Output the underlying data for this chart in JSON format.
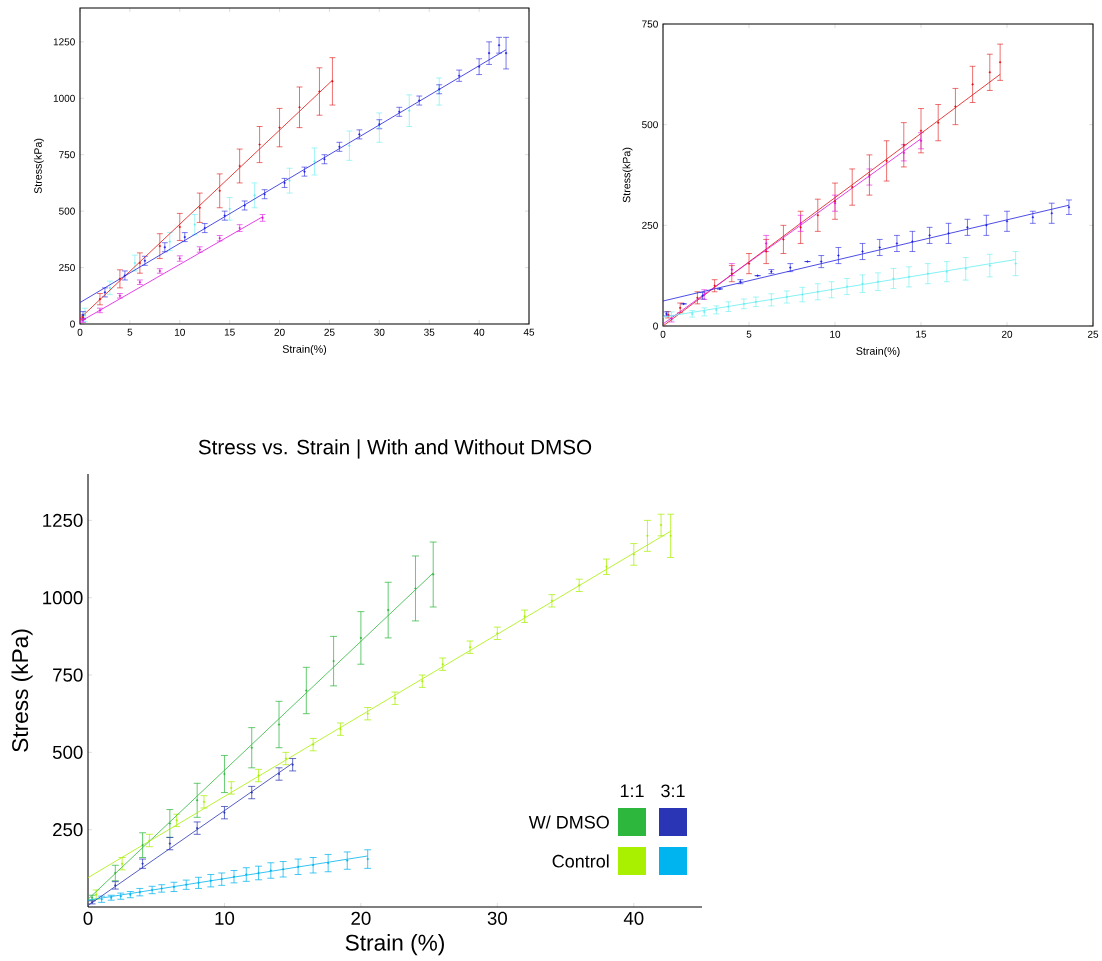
{
  "chart_data": [
    {
      "type": "scatter",
      "xlabel": "Strain(%)",
      "ylabel": "Stress(kPa)",
      "xlim": [
        0,
        45
      ],
      "ylim": [
        0,
        1400
      ],
      "xticks": [
        0,
        5,
        10,
        15,
        20,
        25,
        30,
        35,
        40,
        45
      ],
      "yticks": [
        0,
        250,
        500,
        750,
        1000,
        1250
      ],
      "marker": "circle",
      "series": [
        {
          "color": "#66eef0",
          "x": [
            0.5,
            3,
            5.5,
            9,
            11.5,
            15,
            17.5,
            21,
            23.5,
            27,
            30,
            33,
            36
          ],
          "values": [
            40,
            160,
            270,
            365,
            440,
            510,
            570,
            635,
            720,
            790,
            870,
            945,
            1030
          ],
          "errors": [
            30,
            30,
            35,
            40,
            45,
            50,
            55,
            55,
            60,
            65,
            65,
            70,
            60
          ]
        },
        {
          "color": "#e01010",
          "x": [
            0.3,
            2,
            4,
            6,
            8,
            10,
            12,
            14,
            16,
            18,
            20,
            22,
            24,
            25.3
          ],
          "values": [
            30,
            110,
            200,
            270,
            345,
            430,
            515,
            590,
            700,
            795,
            870,
            960,
            1030,
            1075
          ],
          "errors": [
            10,
            25,
            40,
            45,
            55,
            60,
            65,
            75,
            75,
            80,
            85,
            90,
            105,
            105
          ]
        },
        {
          "color": "#2020e0",
          "x": [
            0.3,
            2.5,
            4.5,
            6.5,
            8.5,
            10.5,
            12.5,
            14.5,
            16.5,
            18.5,
            20.5,
            22.5,
            24.5,
            26,
            28,
            30,
            32,
            34,
            36,
            38,
            40,
            41,
            42,
            42.7
          ],
          "values": [
            40,
            140,
            215,
            280,
            340,
            385,
            425,
            480,
            525,
            575,
            625,
            675,
            730,
            785,
            840,
            885,
            940,
            990,
            1040,
            1100,
            1140,
            1200,
            1235,
            1200
          ],
          "errors": [
            15,
            20,
            20,
            20,
            20,
            20,
            20,
            20,
            20,
            20,
            20,
            20,
            20,
            20,
            20,
            20,
            20,
            20,
            20,
            25,
            35,
            50,
            35,
            70
          ]
        },
        {
          "color": "#e010e0",
          "x": [
            0.3,
            2,
            4,
            6,
            8,
            10,
            12,
            14,
            16,
            18.3
          ],
          "values": [
            15,
            60,
            125,
            185,
            235,
            290,
            330,
            380,
            425,
            470
          ],
          "errors": [
            8,
            10,
            10,
            10,
            10,
            12,
            12,
            12,
            15,
            15
          ]
        },
        {
          "type": "line",
          "marker": "none",
          "color": "#e01010",
          "x": [
            0,
            25.3
          ],
          "values": [
            25,
            1080
          ]
        },
        {
          "type": "line",
          "marker": "none",
          "color": "#2020e0",
          "x": [
            0,
            42.7
          ],
          "values": [
            95,
            1215
          ]
        },
        {
          "type": "line",
          "marker": "none",
          "color": "#e010e0",
          "x": [
            0,
            18.3
          ],
          "values": [
            10,
            475
          ]
        }
      ]
    },
    {
      "type": "scatter",
      "xlabel": "Strain(%)",
      "ylabel": "Stress(kPa)",
      "xlim": [
        0,
        25
      ],
      "ylim": [
        0,
        750
      ],
      "xticks": [
        0,
        5,
        10,
        15,
        20,
        25
      ],
      "yticks": [
        0,
        250,
        500,
        750
      ],
      "marker": "circle",
      "series": [
        {
          "color": "#e01010",
          "x": [
            0.3,
            1,
            2,
            3,
            4,
            5,
            6,
            7,
            8,
            9,
            10,
            11,
            12,
            13,
            14,
            15,
            16,
            17,
            18,
            19,
            19.6
          ],
          "values": [
            28,
            45,
            70,
            100,
            130,
            155,
            185,
            215,
            245,
            275,
            310,
            345,
            375,
            410,
            450,
            485,
            505,
            545,
            600,
            630,
            655
          ],
          "errors": [
            8,
            12,
            15,
            15,
            20,
            25,
            30,
            35,
            40,
            40,
            45,
            45,
            50,
            50,
            55,
            55,
            45,
            45,
            45,
            45,
            45
          ]
        },
        {
          "color": "#e010e0",
          "x": [
            0.5,
            2.4,
            4,
            6,
            8,
            10,
            12,
            14,
            15
          ],
          "values": [
            18,
            78,
            140,
            205,
            255,
            305,
            370,
            430,
            460
          ],
          "errors": [
            8,
            12,
            15,
            20,
            20,
            20,
            20,
            20,
            20
          ]
        },
        {
          "color": "#2020e0",
          "x": [
            0.2,
            1.2,
            2.3,
            3.3,
            4.5,
            5.5,
            6.3,
            7.4,
            8.4,
            9.2,
            10.2,
            11.6,
            12.6,
            13.6,
            14.5,
            15.5,
            16.6,
            17.7,
            18.8,
            20,
            21.5,
            22.6,
            23.6
          ],
          "values": [
            30,
            55,
            75,
            92,
            110,
            125,
            135,
            145,
            160,
            160,
            175,
            185,
            195,
            205,
            210,
            225,
            230,
            245,
            250,
            260,
            270,
            280,
            295
          ],
          "errors": [
            5,
            null,
            8,
            null,
            5,
            null,
            5,
            10,
            null,
            15,
            20,
            20,
            20,
            20,
            25,
            20,
            25,
            20,
            25,
            25,
            15,
            25,
            18
          ]
        },
        {
          "color": "#66eef0",
          "x": [
            0.5,
            1.7,
            2.4,
            3.1,
            3.8,
            4.7,
            5.4,
            6.3,
            7.2,
            8.1,
            9,
            9.8,
            10.7,
            11.6,
            12.5,
            13.4,
            14.3,
            15.4,
            16.5,
            17.6,
            19,
            20.5
          ],
          "values": [
            25,
            30,
            35,
            40,
            48,
            55,
            60,
            65,
            72,
            78,
            85,
            90,
            98,
            105,
            110,
            118,
            122,
            130,
            135,
            142,
            150,
            155
          ],
          "errors": [
            10,
            8,
            10,
            10,
            12,
            12,
            12,
            15,
            15,
            18,
            20,
            20,
            20,
            22,
            22,
            25,
            25,
            25,
            25,
            28,
            28,
            30
          ]
        },
        {
          "type": "line",
          "marker": "none",
          "color": "#e01010",
          "x": [
            0,
            19.6
          ],
          "values": [
            0,
            625
          ]
        },
        {
          "type": "line",
          "marker": "none",
          "color": "#e010e0",
          "x": [
            0,
            15
          ],
          "values": [
            5,
            465
          ]
        },
        {
          "type": "line",
          "marker": "none",
          "color": "#2020e0",
          "x": [
            0,
            23.6
          ],
          "values": [
            62,
            300
          ]
        },
        {
          "type": "line",
          "marker": "none",
          "color": "#66eef0",
          "x": [
            0,
            20.5
          ],
          "values": [
            22,
            165
          ]
        }
      ]
    },
    {
      "type": "scatter",
      "title": "Stress vs. Strain | With and Without DMSO",
      "xlabel": "Strain (%)",
      "ylabel": "Stress (kPa)",
      "xlim": [
        0,
        45
      ],
      "ylim": [
        0,
        1400
      ],
      "xticks": [
        0,
        10,
        20,
        30,
        40
      ],
      "yticks": [
        250,
        500,
        750,
        1000,
        1250
      ],
      "marker": "circle",
      "annotations": [
        "1:1",
        "3:1",
        "W/ DMSO",
        "Control"
      ],
      "series": [
        {
          "color": "#2db83d",
          "x": [
            0.3,
            2,
            4,
            6,
            8,
            10,
            12,
            14,
            16,
            18,
            20,
            22,
            24,
            25.3
          ],
          "values": [
            30,
            110,
            200,
            270,
            345,
            430,
            515,
            590,
            700,
            795,
            870,
            960,
            1030,
            1075
          ],
          "errors": [
            8,
            25,
            40,
            45,
            55,
            60,
            65,
            75,
            75,
            80,
            85,
            90,
            105,
            105
          ]
        },
        {
          "color": "#2a35b5",
          "x": [
            0.3,
            2,
            4,
            6,
            8,
            10,
            12,
            14,
            15
          ],
          "values": [
            15,
            70,
            140,
            205,
            255,
            305,
            370,
            430,
            460
          ],
          "errors": [
            5,
            12,
            15,
            20,
            20,
            20,
            20,
            20,
            20
          ]
        },
        {
          "color": "#a8f000",
          "x": [
            0.6,
            2.5,
            4.5,
            6.5,
            8.5,
            10.5,
            12.5,
            14.5,
            16.5,
            18.5,
            20.5,
            22.5,
            24.5,
            26,
            28,
            30,
            32,
            34,
            36,
            38,
            40,
            41,
            42,
            42.7
          ],
          "values": [
            40,
            140,
            215,
            280,
            340,
            385,
            425,
            480,
            525,
            575,
            625,
            675,
            730,
            785,
            840,
            885,
            940,
            990,
            1040,
            1100,
            1140,
            1200,
            1235,
            1200
          ],
          "errors": [
            15,
            20,
            20,
            20,
            20,
            20,
            20,
            20,
            20,
            20,
            20,
            20,
            20,
            20,
            20,
            20,
            20,
            20,
            20,
            25,
            35,
            50,
            35,
            70
          ]
        },
        {
          "color": "#00b4f0",
          "x": [
            1.0,
            1.7,
            2.4,
            3.1,
            3.8,
            4.7,
            5.4,
            6.3,
            7.2,
            8.1,
            9,
            9.8,
            10.7,
            11.6,
            12.5,
            13.4,
            14.3,
            15.4,
            16.5,
            17.6,
            19,
            20.5
          ],
          "values": [
            25,
            30,
            35,
            40,
            48,
            55,
            60,
            65,
            72,
            78,
            85,
            90,
            98,
            105,
            110,
            118,
            122,
            130,
            135,
            142,
            150,
            155
          ],
          "errors": [
            10,
            8,
            10,
            10,
            12,
            12,
            12,
            15,
            15,
            18,
            20,
            20,
            20,
            22,
            22,
            25,
            25,
            25,
            25,
            28,
            28,
            30
          ]
        },
        {
          "type": "line",
          "marker": "none",
          "color": "#2db83d",
          "x": [
            0,
            25.3
          ],
          "values": [
            25,
            1080
          ]
        },
        {
          "type": "line",
          "marker": "none",
          "color": "#2a35b5",
          "x": [
            0,
            15
          ],
          "values": [
            5,
            465
          ]
        },
        {
          "type": "line",
          "marker": "none",
          "color": "#a8f000",
          "x": [
            0,
            42.7
          ],
          "values": [
            95,
            1215
          ]
        },
        {
          "type": "line",
          "marker": "none",
          "color": "#00b4f0",
          "x": [
            0,
            20.5
          ],
          "values": [
            22,
            165
          ]
        }
      ]
    }
  ]
}
